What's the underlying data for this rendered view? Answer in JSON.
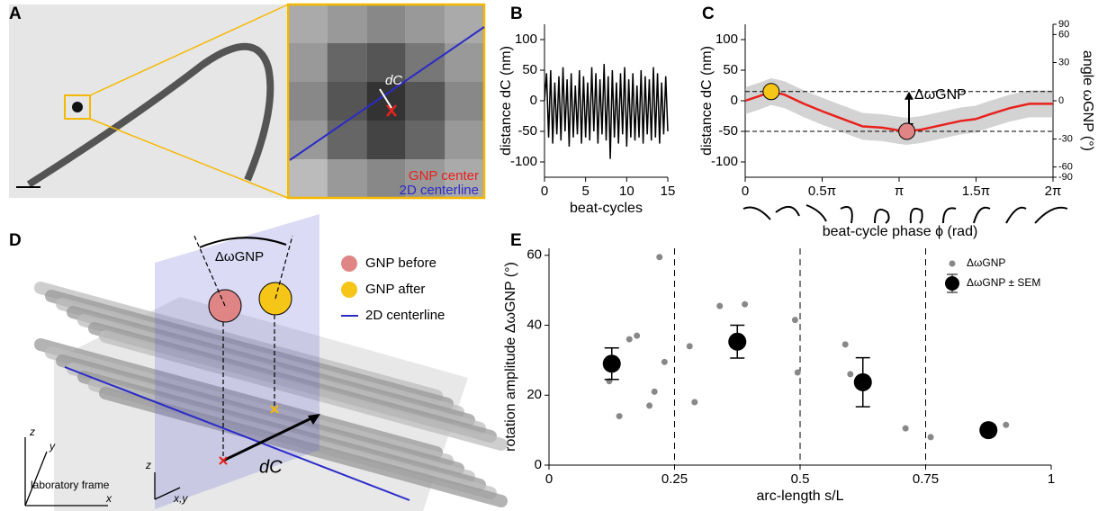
{
  "panels": {
    "A": {
      "letter": "A",
      "inset_label": "dC",
      "legend": [
        "GNP center",
        "2D centerline"
      ]
    },
    "B": {
      "letter": "B"
    },
    "C": {
      "letter": "C"
    },
    "D": {
      "letter": "D",
      "legend": [
        "GNP before",
        "GNP after",
        "2D centerline"
      ],
      "angle_label": "ΔωGNP",
      "distance_label": "dC",
      "frame_label": "laboratory frame",
      "axes": [
        "z",
        "y",
        "x"
      ],
      "local_axes": [
        "z",
        "x,y"
      ]
    },
    "E": {
      "letter": "E"
    }
  },
  "chart_data": [
    {
      "type": "line",
      "xlabel": "beat-cycles",
      "ylabel": "distance dC (nm)",
      "x": [
        0,
        0.25,
        0.5,
        0.75,
        1,
        1.25,
        1.5,
        1.75,
        2,
        2.25,
        2.5,
        2.75,
        3,
        3.25,
        3.5,
        3.75,
        4,
        4.25,
        4.5,
        4.75,
        5,
        5.25,
        5.5,
        5.75,
        6,
        6.25,
        6.5,
        6.75,
        7,
        7.25,
        7.5,
        7.75,
        8,
        8.25,
        8.5,
        8.75,
        9,
        9.25,
        9.5,
        9.75,
        10,
        10.25,
        10.5,
        10.75,
        11,
        11.25,
        11.5,
        11.75,
        12,
        12.25,
        12.5,
        12.75,
        13,
        13.25,
        13.5,
        13.75,
        14,
        14.25,
        14.5,
        14.75,
        15
      ],
      "series": [
        {
          "color": "#000000",
          "values": [
            0,
            45,
            -60,
            50,
            -70,
            30,
            -55,
            40,
            -65,
            55,
            -50,
            35,
            -75,
            45,
            -60,
            25,
            -55,
            50,
            -70,
            40,
            -60,
            30,
            -65,
            55,
            -50,
            45,
            -70,
            35,
            -55,
            60,
            -65,
            40,
            -95,
            50,
            -60,
            30,
            -70,
            45,
            -55,
            55,
            -75,
            35,
            -60,
            45,
            -65,
            25,
            -60,
            50,
            -70,
            40,
            -55,
            35,
            -65,
            55,
            -60,
            45,
            -70,
            30,
            -55,
            40,
            -50
          ]
        }
      ],
      "xlim": [
        0,
        15
      ],
      "xticks": [
        0,
        5,
        10,
        15
      ],
      "ylim": [
        -125,
        125
      ],
      "yticks": [
        -100,
        -50,
        0,
        50,
        100
      ]
    },
    {
      "type": "line",
      "xlabel": "beat-cycle phase ϕ (rad)",
      "ylabel": "distance dC (nm)",
      "y2label": "angle ωGNP (°)",
      "x": [
        0,
        0.3,
        0.53,
        0.8,
        1.2,
        1.6,
        2.0,
        2.4,
        2.8,
        3.1,
        3.3,
        3.6,
        4.0,
        4.4,
        4.7,
        5.0,
        5.4,
        5.8,
        6.2832
      ],
      "series": [
        {
          "color": "#e8211c",
          "values": [
            0,
            8,
            15,
            10,
            -5,
            -18,
            -30,
            -42,
            -44,
            -48,
            -50,
            -47,
            -40,
            -33,
            -30,
            -22,
            -12,
            -5,
            -5
          ]
        }
      ],
      "band": {
        "color": "#a8a8a8",
        "upper": [
          22,
          30,
          37,
          32,
          17,
          4,
          -8,
          -20,
          -22,
          -26,
          -28,
          -25,
          -18,
          -11,
          -8,
          0,
          10,
          17,
          17
        ],
        "lower": [
          -22,
          -14,
          -7,
          -12,
          -27,
          -40,
          -52,
          -64,
          -66,
          -70,
          -72,
          -69,
          -62,
          -55,
          -52,
          -44,
          -34,
          -27,
          -27
        ]
      },
      "points": [
        {
          "x": 0.53,
          "y": 15,
          "color": "#f5c518"
        },
        {
          "x": 3.3,
          "y": -50,
          "color": "#e08585"
        }
      ],
      "hlines": [
        15,
        -50
      ],
      "annotation": "ΔωGNP",
      "xlim": [
        0,
        6.2832
      ],
      "xticks": [
        0,
        {
          "value": 1.5708,
          "label": "0.5π"
        },
        {
          "value": 3.1416,
          "label": "π"
        },
        {
          "value": 4.7124,
          "label": "1.5π"
        },
        {
          "value": 6.2832,
          "label": "2π"
        }
      ],
      "ylim": [
        -125,
        125
      ],
      "yticks": [
        -100,
        -50,
        0,
        50,
        100
      ],
      "y2lim": [
        -90,
        90
      ],
      "y2ticks": [
        -90,
        -60,
        -30,
        0,
        30,
        60,
        90
      ],
      "y2scale": "sine"
    },
    {
      "type": "scatter",
      "xlabel": "arc-length s/L",
      "ylabel": "rotation amplitude ΔωGNP (°)",
      "legend": "upper right",
      "series": [
        {
          "name": "ΔωGNP",
          "color": "#888888",
          "x": [
            0.12,
            0.14,
            0.16,
            0.175,
            0.2,
            0.21,
            0.22,
            0.23,
            0.28,
            0.29,
            0.34,
            0.39,
            0.49,
            0.495,
            0.59,
            0.6,
            0.71,
            0.76,
            0.91
          ],
          "values": [
            24,
            14,
            36,
            37,
            17,
            21,
            59.5,
            29.5,
            34,
            18,
            45.5,
            46,
            41.5,
            26.5,
            34.5,
            26,
            10.5,
            8,
            11.5
          ]
        },
        {
          "name": "ΔωGNP ± SEM",
          "color": "#000000",
          "x": [
            0.125,
            0.375,
            0.625,
            0.875
          ],
          "values": [
            29,
            35.3,
            23.7,
            10
          ],
          "errors": [
            4.5,
            4.7,
            7,
            1.5
          ]
        }
      ],
      "vlines": [
        0.25,
        0.5,
        0.75
      ],
      "xlim": [
        0,
        1
      ],
      "xticks": [
        0,
        0.25,
        0.5,
        0.75,
        1
      ],
      "ylim": [
        0,
        62
      ],
      "yticks": [
        0,
        20,
        40,
        60
      ]
    }
  ]
}
